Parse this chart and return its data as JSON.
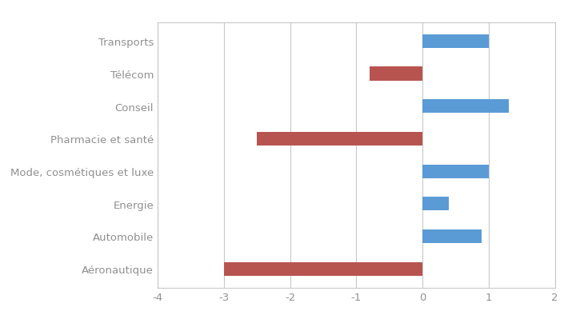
{
  "categories": [
    "Transports",
    "Télécom",
    "Conseil",
    "Pharmacie et santé",
    "Mode, cosmétiques et luxe",
    "Energie",
    "Automobile",
    "Aéronautique"
  ],
  "values": [
    1.0,
    -0.8,
    1.3,
    -2.5,
    1.0,
    0.4,
    0.9,
    -3.0
  ],
  "bar_color_positive": "#5b9bd5",
  "bar_color_negative": "#b85450",
  "xlim": [
    -4,
    2
  ],
  "xticks": [
    -4,
    -3,
    -2,
    -1,
    0,
    1,
    2
  ],
  "grid_color": "#c8c8c8",
  "background_color": "#ffffff",
  "tick_label_color": "#909090",
  "category_label_color": "#909090",
  "bar_height": 0.42,
  "figure_width": 7.3,
  "figure_height": 4.1,
  "dpi": 100,
  "label_fontsize": 9.5,
  "tick_fontsize": 9.5
}
